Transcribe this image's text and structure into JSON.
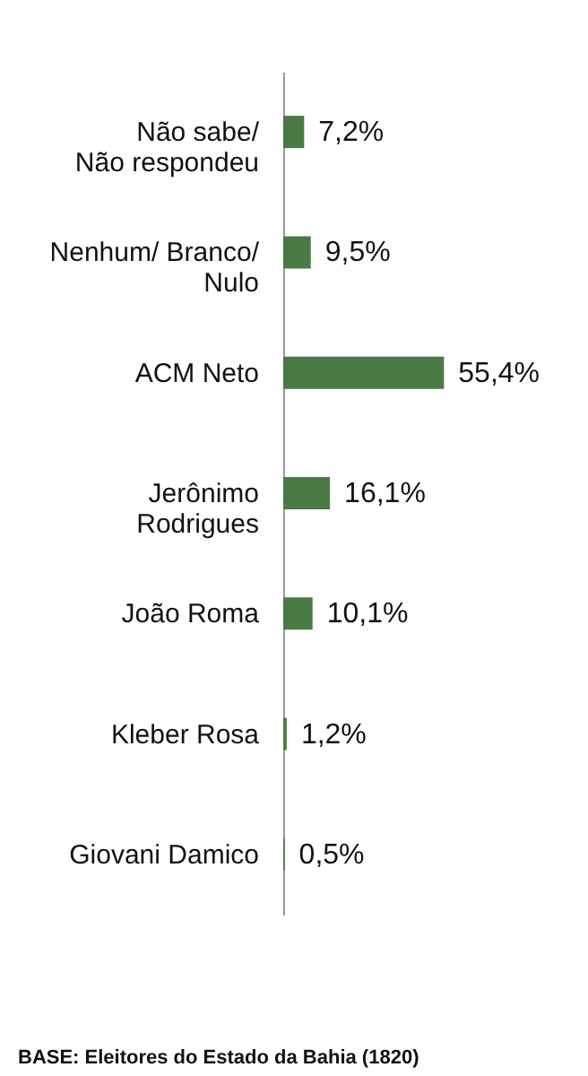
{
  "chart_data": {
    "type": "bar",
    "orientation": "horizontal",
    "categories": [
      "Não sabe/\nNão respondeu",
      "Nenhum/ Branco/\nNulo",
      "ACM Neto",
      "Jerônimo\nRodrigues",
      "João Roma",
      "Kleber Rosa",
      "Giovani Damico"
    ],
    "values": [
      7.2,
      9.5,
      55.4,
      16.1,
      10.1,
      1.2,
      0.5
    ],
    "value_labels": [
      "7,2%",
      "9,5%",
      "55,4%",
      "16,1%",
      "10,1%",
      "1,2%",
      "0,5%"
    ],
    "color": "#4a7a45",
    "grid": false,
    "tick_labels": "y",
    "annotations": [
      "BASE: Eleitores do Estado da Bahia (1820)"
    ]
  }
}
